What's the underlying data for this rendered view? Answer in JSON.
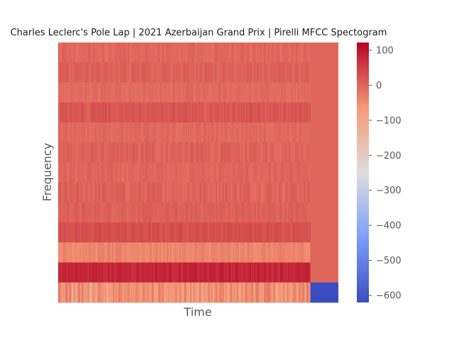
{
  "chart_data": {
    "type": "heatmap",
    "title": "Charles Leclerc's Pole Lap | 2021 Azerbaijan Grand Prix | Pirelli MFCC Spectogram",
    "xlabel": "Time",
    "ylabel": "Frequency",
    "colormap": "coolwarm",
    "color_range": [
      -620,
      122
    ],
    "colorbar_ticks": [
      {
        "value": 100,
        "label": "100"
      },
      {
        "value": 0,
        "label": "0"
      },
      {
        "value": -100,
        "label": "−100"
      },
      {
        "value": -200,
        "label": "−200"
      },
      {
        "value": -300,
        "label": "−300"
      },
      {
        "value": -400,
        "label": "−400"
      },
      {
        "value": -500,
        "label": "−500"
      },
      {
        "value": -600,
        "label": "−600"
      }
    ],
    "n_coefficients": 13,
    "n_frames": 240,
    "active_fraction": 0.9,
    "padding_value": 0,
    "rows": [
      {
        "coefficient": 13,
        "mean": -2,
        "spread": 12
      },
      {
        "coefficient": 12,
        "mean": 6,
        "spread": 12
      },
      {
        "coefficient": 11,
        "mean": -6,
        "spread": 10
      },
      {
        "coefficient": 10,
        "mean": 18,
        "spread": 14
      },
      {
        "coefficient": 9,
        "mean": -4,
        "spread": 10
      },
      {
        "coefficient": 8,
        "mean": 4,
        "spread": 14
      },
      {
        "coefficient": 7,
        "mean": 0,
        "spread": 10
      },
      {
        "coefficient": 6,
        "mean": 4,
        "spread": 16
      },
      {
        "coefficient": 5,
        "mean": 6,
        "spread": 10
      },
      {
        "coefficient": 4,
        "mean": 28,
        "spread": 10
      },
      {
        "coefficient": 3,
        "mean": -40,
        "spread": 15
      },
      {
        "coefficient": 2,
        "mean": 80,
        "spread": 16
      },
      {
        "coefficient": 1,
        "mean": -55,
        "spread": 40
      }
    ],
    "padding_block_first_coefficient": -620
  }
}
